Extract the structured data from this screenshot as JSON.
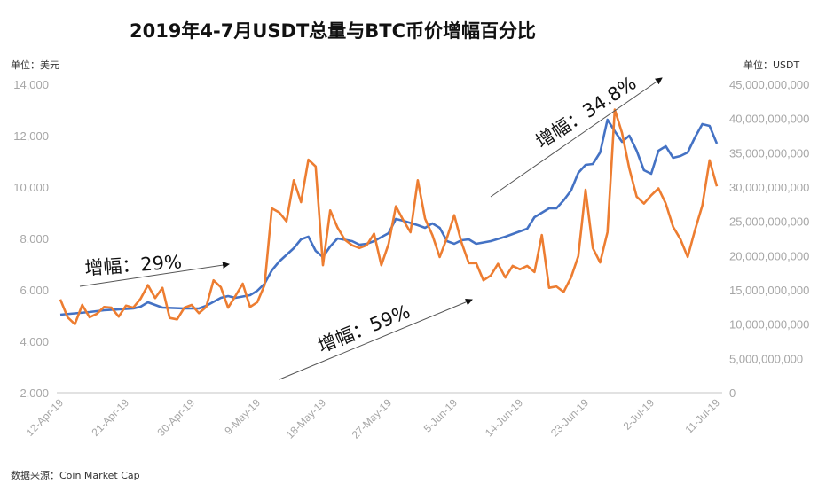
{
  "chart_data": {
    "type": "line",
    "title": "2019年4-7月USDT总量与BTC币价增幅百分比",
    "left_axis": {
      "unit_label": "单位：美元",
      "ylim": [
        2000,
        14000
      ],
      "ticks": [
        "2,000",
        "4,000",
        "6,000",
        "8,000",
        "10,000",
        "12,000",
        "14,000"
      ]
    },
    "right_axis": {
      "unit_label": "单位：USDT",
      "ylim": [
        0,
        45000000000
      ],
      "ticks": [
        "0",
        "5,000,000,000",
        "10,000,000,000",
        "15,000,000,000",
        "20,000,000,000",
        "25,000,000,000",
        "30,000,000,000",
        "35,000,000,000",
        "40,000,000,000",
        "45,000,000,000"
      ]
    },
    "x_tick_labels": [
      "12-Apr-19",
      "21-Apr-19",
      "30-Apr-19",
      "9-May-19",
      "18-May-19",
      "27-May-19",
      "5-Jun-19",
      "14-Jun-19",
      "23-Jun-19",
      "2-Jul-19",
      "11-Jul-19"
    ],
    "x_tick_dates": [
      "2019-04-12",
      "2019-04-21",
      "2019-04-30",
      "2019-05-09",
      "2019-05-18",
      "2019-05-27",
      "2019-06-05",
      "2019-06-14",
      "2019-06-23",
      "2019-07-02",
      "2019-07-11"
    ],
    "xlim": [
      "2019-04-12",
      "2019-07-11"
    ],
    "grid": false,
    "legend": "none",
    "series": [
      {
        "axis": "left",
        "color": "#4472c4",
        "x": [
          "2019-04-12",
          "2019-04-16",
          "2019-04-18",
          "2019-04-22",
          "2019-04-23",
          "2019-04-24",
          "2019-04-26",
          "2019-04-29",
          "2019-05-01",
          "2019-05-02",
          "2019-05-04",
          "2019-05-05",
          "2019-05-06",
          "2019-05-08",
          "2019-05-09",
          "2019-05-10",
          "2019-05-11",
          "2019-05-12",
          "2019-05-14",
          "2019-05-15",
          "2019-05-16",
          "2019-05-17",
          "2019-05-18",
          "2019-05-19",
          "2019-05-20",
          "2019-05-22",
          "2019-05-23",
          "2019-05-24",
          "2019-05-25",
          "2019-05-27",
          "2019-05-28",
          "2019-05-29",
          "2019-05-31",
          "2019-06-01",
          "2019-06-02",
          "2019-06-03",
          "2019-06-04",
          "2019-06-05",
          "2019-06-06",
          "2019-06-07",
          "2019-06-08",
          "2019-06-10",
          "2019-06-12",
          "2019-06-15",
          "2019-06-16",
          "2019-06-18",
          "2019-06-19",
          "2019-06-20",
          "2019-06-21",
          "2019-06-22",
          "2019-06-23",
          "2019-06-24",
          "2019-06-25",
          "2019-06-26",
          "2019-06-27",
          "2019-06-28",
          "2019-06-29",
          "2019-06-30",
          "2019-07-01",
          "2019-07-02",
          "2019-07-03",
          "2019-07-04",
          "2019-07-05",
          "2019-07-06",
          "2019-07-07",
          "2019-07-08",
          "2019-07-09",
          "2019-07-10",
          "2019-07-11"
        ],
        "y": [
          5034,
          5138,
          5207,
          5276,
          5345,
          5517,
          5310,
          5276,
          5276,
          5379,
          5690,
          5758,
          5690,
          5793,
          5965,
          6241,
          6758,
          7103,
          7620,
          7965,
          8069,
          7517,
          7276,
          7690,
          8000,
          7896,
          7758,
          7793,
          7896,
          8206,
          8758,
          8689,
          8517,
          8413,
          8586,
          8413,
          7896,
          7793,
          7931,
          7965,
          7793,
          7896,
          8069,
          8379,
          8827,
          9172,
          9172,
          9482,
          9861,
          10551,
          10861,
          10896,
          11344,
          12620,
          12172,
          11758,
          11999,
          11413,
          10655,
          10517,
          11413,
          11586,
          11137,
          11206,
          11344,
          11930,
          12447,
          12378,
          11689
        ]
      },
      {
        "axis": "right",
        "color": "#ed7d31",
        "x": [
          "2019-04-12",
          "2019-04-13",
          "2019-04-14",
          "2019-04-15",
          "2019-04-16",
          "2019-04-17",
          "2019-04-18",
          "2019-04-19",
          "2019-04-20",
          "2019-04-21",
          "2019-04-22",
          "2019-04-23",
          "2019-04-24",
          "2019-04-25",
          "2019-04-26",
          "2019-04-27",
          "2019-04-28",
          "2019-04-29",
          "2019-04-30",
          "2019-05-01",
          "2019-05-02",
          "2019-05-03",
          "2019-05-04",
          "2019-05-05",
          "2019-05-06",
          "2019-05-07",
          "2019-05-08",
          "2019-05-09",
          "2019-05-10",
          "2019-05-11",
          "2019-05-12",
          "2019-05-13",
          "2019-05-14",
          "2019-05-15",
          "2019-05-16",
          "2019-05-17",
          "2019-05-18",
          "2019-05-19",
          "2019-05-20",
          "2019-05-21",
          "2019-05-22",
          "2019-05-23",
          "2019-05-24",
          "2019-05-25",
          "2019-05-26",
          "2019-05-27",
          "2019-05-28",
          "2019-05-29",
          "2019-05-30",
          "2019-05-31",
          "2019-06-01",
          "2019-06-02",
          "2019-06-03",
          "2019-06-04",
          "2019-06-05",
          "2019-06-06",
          "2019-06-07",
          "2019-06-08",
          "2019-06-09",
          "2019-06-10",
          "2019-06-11",
          "2019-06-12",
          "2019-06-13",
          "2019-06-14",
          "2019-06-15",
          "2019-06-16",
          "2019-06-17",
          "2019-06-18",
          "2019-06-19",
          "2019-06-20",
          "2019-06-21",
          "2019-06-22",
          "2019-06-23",
          "2019-06-24",
          "2019-06-25",
          "2019-06-26",
          "2019-06-27",
          "2019-06-28",
          "2019-06-29",
          "2019-06-30",
          "2019-07-01",
          "2019-07-02",
          "2019-07-03",
          "2019-07-04",
          "2019-07-05",
          "2019-07-06",
          "2019-07-07",
          "2019-07-08",
          "2019-07-09",
          "2019-07-10",
          "2019-07-11"
        ],
        "y": [
          13600000000.0,
          11000000000.0,
          10000000000.0,
          12800000000.0,
          11000000000.0,
          11500000000.0,
          12500000000.0,
          12400000000.0,
          11100000000.0,
          12700000000.0,
          12400000000.0,
          13700000000.0,
          15700000000.0,
          13800000000.0,
          15300000000.0,
          10900000000.0,
          10700000000.0,
          12400000000.0,
          12800000000.0,
          11600000000.0,
          12500000000.0,
          16400000000.0,
          15400000000.0,
          12400000000.0,
          14100000000.0,
          15900000000.0,
          12500000000.0,
          13200000000.0,
          15700000000.0,
          26900000000.0,
          26300000000.0,
          25000000000.0,
          31000000000.0,
          27800000000.0,
          34000000000.0,
          33000000000.0,
          18600000000.0,
          26600000000.0,
          24100000000.0,
          22300000000.0,
          21500000000.0,
          21100000000.0,
          21500000000.0,
          23200000000.0,
          18600000000.0,
          21700000000.0,
          27200000000.0,
          25200000000.0,
          23400000000.0,
          31000000000.0,
          25400000000.0,
          23000000000.0,
          19800000000.0,
          22600000000.0,
          25900000000.0,
          21900000000.0,
          18900000000.0,
          18900000000.0,
          16400000000.0,
          17100000000.0,
          18800000000.0,
          16800000000.0,
          18500000000.0,
          18000000000.0,
          18500000000.0,
          17600000000.0,
          23000000000.0,
          15300000000.0,
          15500000000.0,
          14700000000.0,
          16800000000.0,
          19900000000.0,
          29600000000.0,
          21100000000.0,
          19000000000.0,
          23400000000.0,
          41300000000.0,
          37900000000.0,
          32700000000.0,
          28600000000.0,
          27600000000.0,
          28800000000.0,
          29800000000.0,
          27600000000.0,
          24200000000.0,
          22400000000.0,
          19800000000.0,
          23700000000.0,
          27300000000.0,
          33900000000.0,
          30100000000.0
        ]
      }
    ],
    "annotations": [
      {
        "text": "增幅：29%",
        "arrow": "up-right"
      },
      {
        "text": "增幅：59%",
        "arrow": "up-right"
      },
      {
        "text": "增幅：34.8%",
        "arrow": "up-right"
      }
    ],
    "source": "数据来源：Coin Market Cap"
  }
}
